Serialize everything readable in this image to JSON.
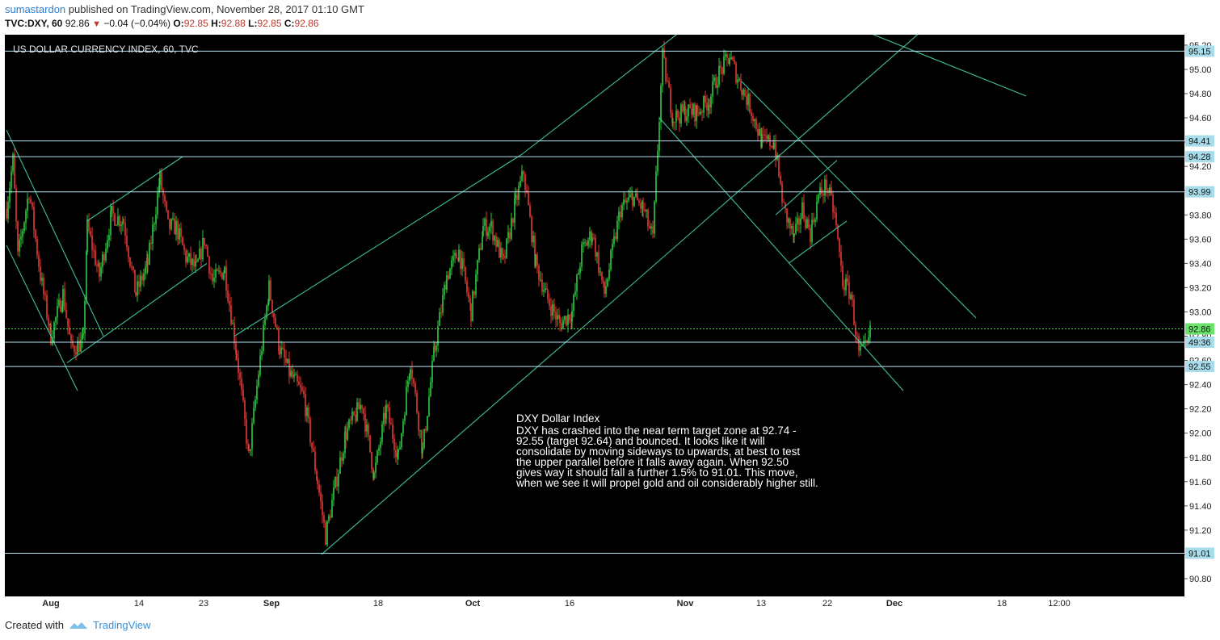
{
  "header": {
    "author": "sumastardon",
    "published_text": "published on TradingView.com, November 28, 2017 01:10 GMT",
    "symbol": "TVC:DXY, 60",
    "last": "92.86",
    "change": "−0.04 (−0.04%)",
    "o_label": "O:",
    "o": "92.85",
    "h_label": "H:",
    "h": "92.88",
    "l_label": "L:",
    "l": "92.85",
    "c_label": "C:",
    "c": "92.86"
  },
  "footer": {
    "created_with": "Created with",
    "brand": "TradingView"
  },
  "chart_data": {
    "type": "candlestick",
    "title": "US DOLLAR CURRENCY INDEX, 60, TVC",
    "ylim": [
      90.8,
      95.3
    ],
    "yticks": [
      "95.20",
      "95.00",
      "94.80",
      "94.60",
      "94.40",
      "94.20",
      "94.00",
      "93.80",
      "93.60",
      "93.40",
      "93.20",
      "93.00",
      "92.80",
      "92.60",
      "92.40",
      "92.20",
      "92.00",
      "91.80",
      "91.60",
      "91.40",
      "91.20",
      "91.00",
      "90.80"
    ],
    "xticks": [
      {
        "label": "Aug",
        "bold": true,
        "idx": 55
      },
      {
        "label": "14",
        "bold": false,
        "idx": 164
      },
      {
        "label": "23",
        "bold": false,
        "idx": 244
      },
      {
        "label": "Sep",
        "bold": true,
        "idx": 328
      },
      {
        "label": "18",
        "bold": false,
        "idx": 460
      },
      {
        "label": "Oct",
        "bold": true,
        "idx": 577
      },
      {
        "label": "16",
        "bold": false,
        "idx": 697
      },
      {
        "label": "Nov",
        "bold": true,
        "idx": 840
      },
      {
        "label": "13",
        "bold": false,
        "idx": 934
      },
      {
        "label": "22",
        "bold": false,
        "idx": 1016
      },
      {
        "label": "Dec",
        "bold": true,
        "idx": 1099
      },
      {
        "label": "18",
        "bold": false,
        "idx": 1232
      },
      {
        "label": "12:00",
        "bold": false,
        "idx": 1303
      }
    ],
    "price_path": [
      [
        0,
        93.85
      ],
      [
        8,
        94.25
      ],
      [
        14,
        93.45
      ],
      [
        28,
        94.0
      ],
      [
        42,
        93.3
      ],
      [
        55,
        92.8
      ],
      [
        70,
        93.15
      ],
      [
        80,
        92.7
      ],
      [
        95,
        92.75
      ],
      [
        100,
        93.7
      ],
      [
        115,
        93.3
      ],
      [
        130,
        93.8
      ],
      [
        145,
        93.75
      ],
      [
        160,
        93.15
      ],
      [
        175,
        93.4
      ],
      [
        190,
        94.1
      ],
      [
        200,
        93.7
      ],
      [
        210,
        93.7
      ],
      [
        222,
        93.45
      ],
      [
        235,
        93.35
      ],
      [
        245,
        93.6
      ],
      [
        255,
        93.25
      ],
      [
        270,
        93.35
      ],
      [
        285,
        92.65
      ],
      [
        300,
        91.8
      ],
      [
        312,
        92.5
      ],
      [
        325,
        93.2
      ],
      [
        338,
        92.7
      ],
      [
        350,
        92.5
      ],
      [
        368,
        92.3
      ],
      [
        385,
        91.6
      ],
      [
        395,
        91.15
      ],
      [
        405,
        91.5
      ],
      [
        420,
        92.0
      ],
      [
        440,
        92.25
      ],
      [
        455,
        91.65
      ],
      [
        470,
        92.2
      ],
      [
        485,
        91.8
      ],
      [
        500,
        92.6
      ],
      [
        515,
        91.85
      ],
      [
        530,
        92.7
      ],
      [
        545,
        93.3
      ],
      [
        560,
        93.5
      ],
      [
        575,
        93.0
      ],
      [
        590,
        93.7
      ],
      [
        600,
        93.7
      ],
      [
        615,
        93.4
      ],
      [
        630,
        93.9
      ],
      [
        640,
        94.15
      ],
      [
        655,
        93.4
      ],
      [
        670,
        93.1
      ],
      [
        685,
        92.9
      ],
      [
        700,
        93.0
      ],
      [
        712,
        93.5
      ],
      [
        725,
        93.65
      ],
      [
        740,
        93.15
      ],
      [
        760,
        93.85
      ],
      [
        775,
        93.95
      ],
      [
        788,
        93.85
      ],
      [
        800,
        93.6
      ],
      [
        812,
        95.1
      ],
      [
        825,
        94.6
      ],
      [
        840,
        94.65
      ],
      [
        855,
        94.65
      ],
      [
        870,
        94.75
      ],
      [
        880,
        94.95
      ],
      [
        895,
        95.1
      ],
      [
        910,
        94.85
      ],
      [
        920,
        94.7
      ],
      [
        935,
        94.4
      ],
      [
        950,
        94.4
      ],
      [
        962,
        93.85
      ],
      [
        975,
        93.6
      ],
      [
        985,
        93.85
      ],
      [
        995,
        93.65
      ],
      [
        1005,
        93.95
      ],
      [
        1015,
        94.05
      ],
      [
        1025,
        93.8
      ],
      [
        1035,
        93.25
      ],
      [
        1045,
        93.15
      ],
      [
        1055,
        92.65
      ],
      [
        1065,
        92.7
      ],
      [
        1070,
        92.86
      ]
    ],
    "hlines": [
      {
        "value": 95.15,
        "label": "95.15"
      },
      {
        "value": 94.41,
        "label": "94.41"
      },
      {
        "value": 94.28,
        "label": "94.28"
      },
      {
        "value": 93.99,
        "label": "93.99"
      },
      {
        "value": 92.75,
        "label": "49:36"
      },
      {
        "value": 92.55,
        "label": "92.55"
      },
      {
        "value": 91.01,
        "label": "91.01"
      }
    ],
    "current_price": {
      "value": 92.86,
      "label": "92.86"
    },
    "trendlines": [
      [
        [
          0,
          94.5
        ],
        [
          120,
          92.8
        ]
      ],
      [
        [
          0,
          93.55
        ],
        [
          88,
          92.35
        ]
      ],
      [
        [
          75,
          92.58
        ],
        [
          248,
          93.4
        ]
      ],
      [
        [
          100,
          93.75
        ],
        [
          218,
          94.28
        ]
      ],
      [
        [
          282,
          92.8
        ],
        [
          638,
          94.3
        ]
      ],
      [
        [
          638,
          94.3
        ],
        [
          832,
          95.3
        ]
      ],
      [
        [
          390,
          91.0
        ],
        [
          744,
          93.05
        ]
      ],
      [
        [
          744,
          93.05
        ],
        [
          1130,
          95.3
        ]
      ],
      [
        [
          808,
          94.6
        ],
        [
          1110,
          92.35
        ]
      ],
      [
        [
          910,
          94.9
        ],
        [
          1200,
          92.95
        ]
      ],
      [
        [
          952,
          93.8
        ],
        [
          1028,
          94.25
        ]
      ],
      [
        [
          968,
          93.4
        ],
        [
          1040,
          93.75
        ]
      ],
      [
        [
          1068,
          95.3
        ],
        [
          1262,
          94.78
        ]
      ]
    ],
    "annotation": {
      "title": "DXY  Dollar Index",
      "lines": [
        "DXY has crashed into the near term target zone at 92.74 -",
        "92.55 (target 92.64) and bounced. It looks like it will",
        "consolidate by moving sideways to upwards, at best to test",
        "the upper parallel before it falls away again. When 92.50",
        "gives way it should fall a further 1.5% to 91.01. This move,",
        "when we see it will propel gold and oil considerably higher still."
      ]
    },
    "colors": {
      "background": "#000000",
      "up": "#2ecc40",
      "down": "#e53935",
      "hline": "#b9e6f2",
      "trend": "#3fbf9f",
      "current": "#5dd55d"
    }
  }
}
